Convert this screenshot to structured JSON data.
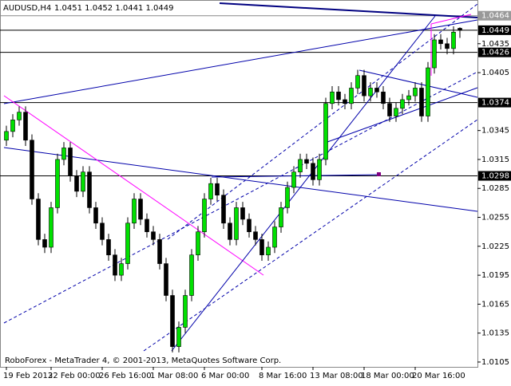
{
  "chart_data": {
    "type": "candlestick",
    "title": "AUDUSD,H4",
    "ohlc_label": "1.0451 1.0452 1.0441 1.0449",
    "footer": "RoboForex - MetaTrader 4, © 2001-2013, MetaQuotes Software Corp.",
    "ylim": [
      1.01,
      1.0477
    ],
    "yticks": [
      1.0435,
      1.0405,
      1.0345,
      1.0315,
      1.0285,
      1.0255,
      1.0225,
      1.0195,
      1.0165,
      1.0135,
      1.0105
    ],
    "levels": [
      1.0464,
      1.0449,
      1.0426,
      1.0374,
      1.0298
    ],
    "x_labels": [
      "19 Feb 2013",
      "22 Feb 00:00",
      "26 Feb 16:00",
      "1 Mar 08:00",
      "6 Mar 00:00",
      "8 Mar 16:00",
      "13 Mar 08:00",
      "18 Mar 00:00",
      "20 Mar 16:00"
    ],
    "x_label_candles": [
      0,
      7,
      15,
      23,
      31,
      40,
      48,
      56,
      64
    ],
    "bull_color": "#00e000",
    "bear_color": "#000000",
    "candles": [
      [
        1.0335,
        1.035,
        1.0329,
        1.0344
      ],
      [
        1.0344,
        1.0362,
        1.0338,
        1.0356
      ],
      [
        1.0356,
        1.037,
        1.035,
        1.0364
      ],
      [
        1.0364,
        1.037,
        1.0329,
        1.0335
      ],
      [
        1.0335,
        1.0341,
        1.0268,
        1.0274
      ],
      [
        1.0274,
        1.028,
        1.0226,
        1.0232
      ],
      [
        1.0232,
        1.0238,
        1.0218,
        1.0224
      ],
      [
        1.0224,
        1.0271,
        1.0218,
        1.0265
      ],
      [
        1.0265,
        1.0321,
        1.0259,
        1.0315
      ],
      [
        1.0315,
        1.0333,
        1.0309,
        1.0327
      ],
      [
        1.0327,
        1.0333,
        1.0292,
        1.0298
      ],
      [
        1.0298,
        1.0304,
        1.0276,
        1.0282
      ],
      [
        1.0282,
        1.0308,
        1.0276,
        1.0302
      ],
      [
        1.0302,
        1.0308,
        1.0259,
        1.0265
      ],
      [
        1.0265,
        1.0271,
        1.0243,
        1.0249
      ],
      [
        1.0249,
        1.0255,
        1.0226,
        1.0232
      ],
      [
        1.0232,
        1.0238,
        1.021,
        1.0216
      ],
      [
        1.0216,
        1.0222,
        1.0189,
        1.0195
      ],
      [
        1.0195,
        1.0213,
        1.0189,
        1.0207
      ],
      [
        1.0207,
        1.0255,
        1.0201,
        1.0249
      ],
      [
        1.0249,
        1.028,
        1.0243,
        1.0274
      ],
      [
        1.0274,
        1.028,
        1.0247,
        1.0253
      ],
      [
        1.0253,
        1.0259,
        1.0234,
        1.024
      ],
      [
        1.024,
        1.0246,
        1.0226,
        1.0232
      ],
      [
        1.0232,
        1.0238,
        1.0201,
        1.0207
      ],
      [
        1.0207,
        1.0213,
        1.0168,
        1.0174
      ],
      [
        1.0174,
        1.018,
        1.0115,
        1.0121
      ],
      [
        1.0121,
        1.0147,
        1.0115,
        1.0141
      ],
      [
        1.0141,
        1.018,
        1.0135,
        1.0174
      ],
      [
        1.0174,
        1.0222,
        1.0168,
        1.0216
      ],
      [
        1.0216,
        1.0246,
        1.021,
        1.024
      ],
      [
        1.024,
        1.028,
        1.0234,
        1.0274
      ],
      [
        1.0274,
        1.0296,
        1.0268,
        1.029
      ],
      [
        1.029,
        1.0296,
        1.0272,
        1.0278
      ],
      [
        1.0278,
        1.0284,
        1.0243,
        1.0249
      ],
      [
        1.0249,
        1.0255,
        1.0226,
        1.0232
      ],
      [
        1.0232,
        1.0271,
        1.0226,
        1.0265
      ],
      [
        1.0265,
        1.0271,
        1.0247,
        1.0253
      ],
      [
        1.0253,
        1.0259,
        1.0234,
        1.024
      ],
      [
        1.024,
        1.0246,
        1.0226,
        1.0232
      ],
      [
        1.0232,
        1.0238,
        1.021,
        1.0216
      ],
      [
        1.0216,
        1.023,
        1.021,
        1.0224
      ],
      [
        1.0224,
        1.0251,
        1.0218,
        1.0245
      ],
      [
        1.0245,
        1.0271,
        1.0239,
        1.0265
      ],
      [
        1.0265,
        1.0292,
        1.0259,
        1.0286
      ],
      [
        1.0286,
        1.0308,
        1.028,
        1.0302
      ],
      [
        1.0302,
        1.0321,
        1.0296,
        1.0315
      ],
      [
        1.0315,
        1.0321,
        1.0305,
        1.0311
      ],
      [
        1.0311,
        1.0317,
        1.0288,
        1.0294
      ],
      [
        1.0294,
        1.0321,
        1.0288,
        1.0315
      ],
      [
        1.0315,
        1.0379,
        1.0309,
        1.0373
      ],
      [
        1.0373,
        1.0391,
        1.0367,
        1.0385
      ],
      [
        1.0385,
        1.0391,
        1.0371,
        1.0377
      ],
      [
        1.0377,
        1.0383,
        1.0367,
        1.0373
      ],
      [
        1.0373,
        1.0395,
        1.0367,
        1.0389
      ],
      [
        1.0389,
        1.0408,
        1.0383,
        1.0402
      ],
      [
        1.0402,
        1.0408,
        1.0375,
        1.0381
      ],
      [
        1.0381,
        1.0395,
        1.0375,
        1.0389
      ],
      [
        1.0389,
        1.0395,
        1.0379,
        1.0385
      ],
      [
        1.0385,
        1.0391,
        1.0367,
        1.0373
      ],
      [
        1.0373,
        1.0379,
        1.0354,
        1.036
      ],
      [
        1.036,
        1.0374,
        1.0354,
        1.0368
      ],
      [
        1.0368,
        1.0383,
        1.0362,
        1.0377
      ],
      [
        1.0377,
        1.0387,
        1.0371,
        1.0381
      ],
      [
        1.0381,
        1.0395,
        1.0375,
        1.0389
      ],
      [
        1.0389,
        1.0395,
        1.0354,
        1.036
      ],
      [
        1.036,
        1.0416,
        1.0354,
        1.041
      ],
      [
        1.041,
        1.0445,
        1.0404,
        1.0439
      ],
      [
        1.0439,
        1.0445,
        1.0429,
        1.0435
      ],
      [
        1.0435,
        1.0441,
        1.0424,
        1.043
      ],
      [
        1.043,
        1.0453,
        1.0424,
        1.0447
      ],
      [
        1.0451,
        1.0452,
        1.0441,
        1.0449
      ]
    ]
  }
}
